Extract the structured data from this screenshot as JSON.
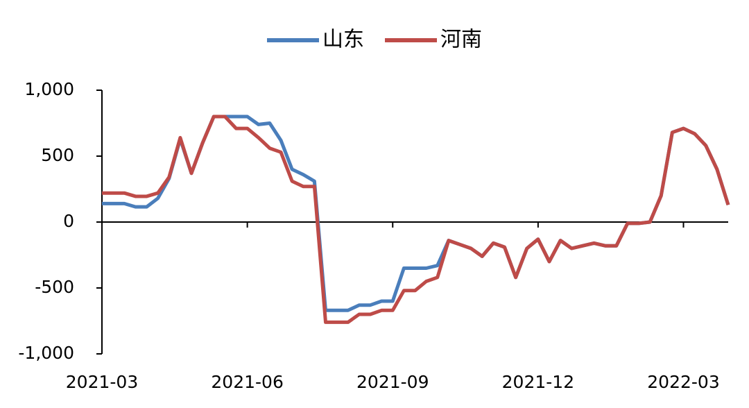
{
  "chart_data": {
    "type": "line",
    "categories": [
      "2021-03",
      null,
      null,
      null,
      null,
      null,
      null,
      null,
      null,
      null,
      null,
      null,
      null,
      "2021-06",
      null,
      null,
      null,
      null,
      null,
      null,
      null,
      null,
      null,
      null,
      null,
      null,
      "2021-09",
      null,
      null,
      null,
      null,
      null,
      null,
      null,
      null,
      null,
      null,
      null,
      null,
      "2021-12",
      null,
      null,
      null,
      null,
      null,
      null,
      null,
      null,
      null,
      null,
      null,
      null,
      "2022-03",
      null,
      null,
      null,
      null
    ],
    "series": [
      {
        "name": "山东",
        "color": "#4a7ebb",
        "values": [
          140,
          140,
          140,
          115,
          115,
          180,
          330,
          630,
          370,
          600,
          800,
          800,
          800,
          800,
          740,
          750,
          620,
          400,
          360,
          310,
          -670,
          -670,
          -670,
          -630,
          -630,
          -600,
          -600,
          -350,
          -350,
          -350,
          -330,
          -140,
          -170,
          -200,
          -260,
          -160,
          -190,
          -420,
          -200,
          -130,
          -300,
          -140,
          -200,
          -180,
          -160,
          -180,
          -180,
          -10,
          -10,
          0,
          200,
          680,
          710,
          670,
          580,
          400,
          130
        ]
      },
      {
        "name": "河南",
        "color": "#be4b48",
        "values": [
          220,
          220,
          220,
          195,
          195,
          220,
          340,
          640,
          370,
          600,
          800,
          800,
          710,
          710,
          640,
          560,
          530,
          310,
          270,
          270,
          -760,
          -760,
          -760,
          -700,
          -700,
          -670,
          -670,
          -520,
          -520,
          -450,
          -420,
          -140,
          -170,
          -200,
          -260,
          -160,
          -190,
          -420,
          -200,
          -130,
          -300,
          -140,
          -200,
          -180,
          -160,
          -180,
          -180,
          -10,
          -10,
          0,
          200,
          680,
          710,
          670,
          580,
          400,
          130
        ]
      }
    ],
    "ylim": [
      -1000,
      1000
    ],
    "yticks": [
      {
        "value": -1000,
        "label": "-1,000"
      },
      -500,
      0,
      500,
      {
        "value": 1000,
        "label": "1,000"
      }
    ],
    "negative_tick_label_color": "#ff0000",
    "legend": "top"
  }
}
